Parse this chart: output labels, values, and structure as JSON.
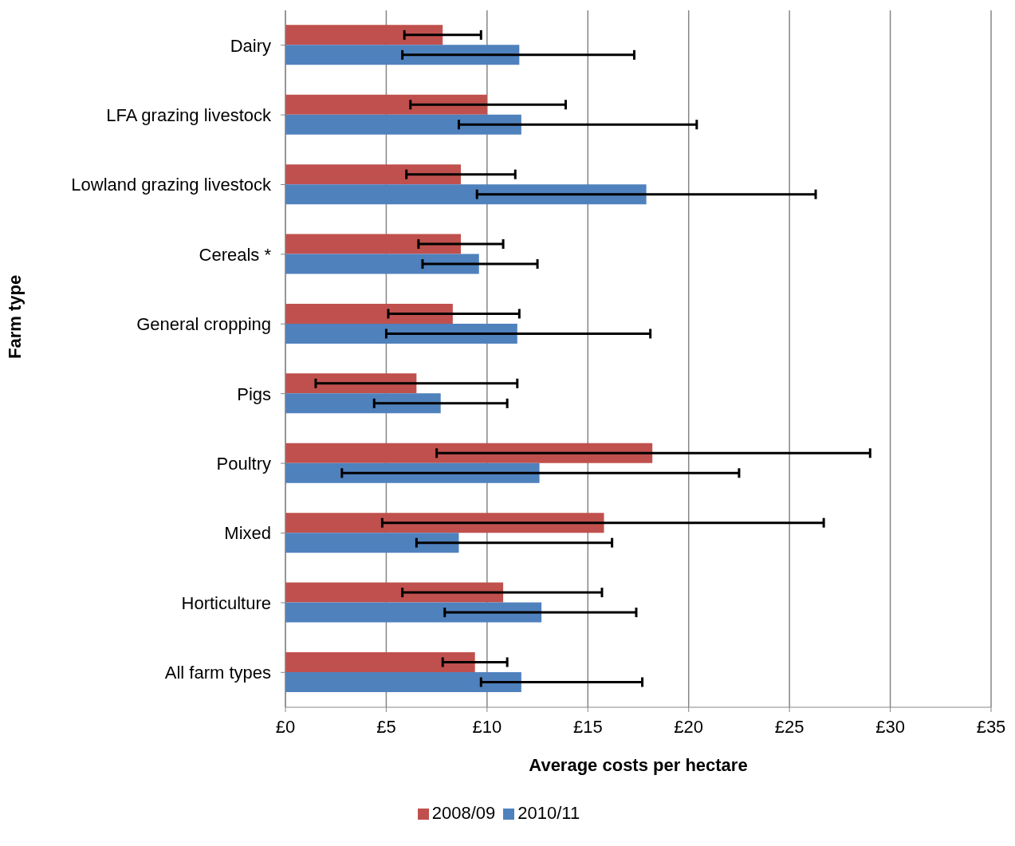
{
  "chart_data": {
    "type": "bar",
    "orientation": "horizontal",
    "xlabel": "Average costs per hectare",
    "ylabel": "Farm type",
    "categories": [
      "Dairy",
      "LFA grazing livestock",
      "Lowland grazing livestock",
      "Cereals *",
      "General cropping",
      "Pigs",
      "Poultry",
      "Mixed",
      "Horticulture",
      "All farm types"
    ],
    "series": [
      {
        "name": "2008/09",
        "color": "#c0504d",
        "values": [
          7.8,
          10.0,
          8.7,
          8.7,
          8.3,
          6.5,
          18.2,
          15.8,
          10.8,
          9.4
        ],
        "errors": [
          [
            5.9,
            9.7
          ],
          [
            6.2,
            13.9
          ],
          [
            6.0,
            11.4
          ],
          [
            6.6,
            10.8
          ],
          [
            5.1,
            11.6
          ],
          [
            1.5,
            11.5
          ],
          [
            7.5,
            29.0
          ],
          [
            4.8,
            26.7
          ],
          [
            5.8,
            15.7
          ],
          [
            7.8,
            11.0
          ]
        ]
      },
      {
        "name": "2010/11",
        "color": "#4f81bd",
        "values": [
          11.6,
          11.7,
          17.9,
          9.6,
          11.5,
          7.7,
          12.6,
          8.6,
          12.7,
          11.7
        ],
        "errors": [
          [
            5.8,
            17.3
          ],
          [
            8.6,
            20.4
          ],
          [
            9.5,
            26.3
          ],
          [
            6.8,
            12.5
          ],
          [
            5.0,
            18.1
          ],
          [
            4.4,
            11.0
          ],
          [
            2.8,
            22.5
          ],
          [
            6.5,
            16.2
          ],
          [
            7.9,
            17.4
          ],
          [
            9.7,
            17.7
          ]
        ]
      }
    ],
    "xlim": [
      0,
      35
    ],
    "xticks": [
      {
        "value": 0,
        "label": "£0"
      },
      {
        "value": 5,
        "label": "£5"
      },
      {
        "value": 10,
        "label": "£10"
      },
      {
        "value": 15,
        "label": "£15"
      },
      {
        "value": 20,
        "label": "£20"
      },
      {
        "value": 25,
        "label": "£25"
      },
      {
        "value": 30,
        "label": "£30"
      },
      {
        "value": 35,
        "label": "£35"
      }
    ],
    "grid": "x",
    "legend": "bottom"
  }
}
